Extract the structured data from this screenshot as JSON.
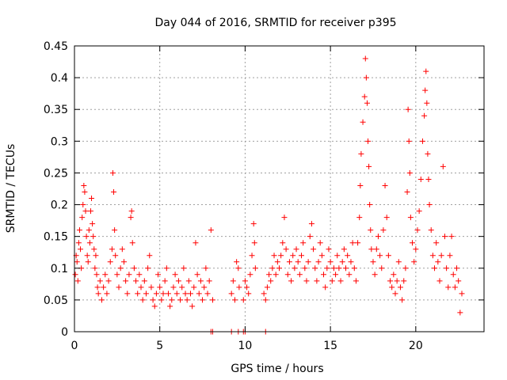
{
  "chart_data": {
    "type": "scatter",
    "title": "Day 044 of 2016, SRMTID for receiver p395",
    "xlabel": "GPS time / hours",
    "ylabel": "SRMTID / TECUs",
    "xlim": [
      0,
      24
    ],
    "ylim": [
      0,
      0.45
    ],
    "x_ticks": [
      0,
      5,
      10,
      15,
      20
    ],
    "y_ticks": [
      0,
      0.05,
      0.1,
      0.15,
      0.2,
      0.25,
      0.3,
      0.35,
      0.4,
      0.45
    ],
    "x_tick_labels": [
      "0",
      "5",
      "10",
      "15",
      "20"
    ],
    "y_tick_labels": [
      "0",
      "0.05",
      "0.1",
      "0.15",
      "0.2",
      "0.25",
      "0.3",
      "0.35",
      "0.4",
      "0.45"
    ],
    "grid": true,
    "marker": "+",
    "color": "#ff0000",
    "series": [
      {
        "name": "SRMTID",
        "points": [
          [
            0.05,
            0.09
          ],
          [
            0.1,
            0.12
          ],
          [
            0.15,
            0.11
          ],
          [
            0.2,
            0.08
          ],
          [
            0.25,
            0.14
          ],
          [
            0.3,
            0.16
          ],
          [
            0.35,
            0.13
          ],
          [
            0.4,
            0.1
          ],
          [
            0.45,
            0.18
          ],
          [
            0.5,
            0.2
          ],
          [
            0.55,
            0.23
          ],
          [
            0.6,
            0.22
          ],
          [
            0.65,
            0.19
          ],
          [
            0.7,
            0.15
          ],
          [
            0.75,
            0.12
          ],
          [
            0.8,
            0.11
          ],
          [
            0.85,
            0.16
          ],
          [
            0.9,
            0.14
          ],
          [
            0.95,
            0.19
          ],
          [
            1.0,
            0.21
          ],
          [
            1.05,
            0.17
          ],
          [
            1.1,
            0.15
          ],
          [
            1.15,
            0.13
          ],
          [
            1.2,
            0.1
          ],
          [
            1.25,
            0.12
          ],
          [
            1.3,
            0.09
          ],
          [
            1.35,
            0.07
          ],
          [
            1.4,
            0.06
          ],
          [
            1.5,
            0.08
          ],
          [
            1.6,
            0.05
          ],
          [
            1.7,
            0.07
          ],
          [
            1.8,
            0.09
          ],
          [
            1.9,
            0.06
          ],
          [
            2.0,
            0.08
          ],
          [
            2.1,
            0.11
          ],
          [
            2.2,
            0.13
          ],
          [
            2.25,
            0.25
          ],
          [
            2.3,
            0.22
          ],
          [
            2.35,
            0.16
          ],
          [
            2.4,
            0.12
          ],
          [
            2.5,
            0.09
          ],
          [
            2.6,
            0.07
          ],
          [
            2.7,
            0.1
          ],
          [
            2.8,
            0.13
          ],
          [
            2.9,
            0.11
          ],
          [
            3.0,
            0.08
          ],
          [
            3.1,
            0.06
          ],
          [
            3.2,
            0.09
          ],
          [
            3.3,
            0.18
          ],
          [
            3.35,
            0.19
          ],
          [
            3.4,
            0.14
          ],
          [
            3.5,
            0.1
          ],
          [
            3.6,
            0.08
          ],
          [
            3.7,
            0.06
          ],
          [
            3.8,
            0.09
          ],
          [
            3.9,
            0.07
          ],
          [
            4.0,
            0.05
          ],
          [
            4.1,
            0.08
          ],
          [
            4.2,
            0.06
          ],
          [
            4.3,
            0.1
          ],
          [
            4.4,
            0.12
          ],
          [
            4.5,
            0.07
          ],
          [
            4.6,
            0.05
          ],
          [
            4.7,
            0.04
          ],
          [
            4.8,
            0.06
          ],
          [
            4.9,
            0.09
          ],
          [
            5.0,
            0.07
          ],
          [
            5.1,
            0.05
          ],
          [
            5.2,
            0.06
          ],
          [
            5.3,
            0.08
          ],
          [
            5.4,
            0.1
          ],
          [
            5.5,
            0.06
          ],
          [
            5.6,
            0.04
          ],
          [
            5.7,
            0.05
          ],
          [
            5.8,
            0.07
          ],
          [
            5.9,
            0.09
          ],
          [
            6.0,
            0.06
          ],
          [
            6.1,
            0.08
          ],
          [
            6.2,
            0.05
          ],
          [
            6.3,
            0.07
          ],
          [
            6.4,
            0.1
          ],
          [
            6.5,
            0.06
          ],
          [
            6.6,
            0.05
          ],
          [
            6.7,
            0.08
          ],
          [
            6.8,
            0.06
          ],
          [
            6.9,
            0.04
          ],
          [
            7.0,
            0.07
          ],
          [
            7.1,
            0.14
          ],
          [
            7.2,
            0.09
          ],
          [
            7.3,
            0.06
          ],
          [
            7.4,
            0.08
          ],
          [
            7.5,
            0.05
          ],
          [
            7.6,
            0.07
          ],
          [
            7.7,
            0.1
          ],
          [
            7.8,
            0.06
          ],
          [
            7.9,
            0.08
          ],
          [
            8.0,
            0.16
          ],
          [
            8.1,
            0.05
          ],
          [
            8.0,
            0.0
          ],
          [
            8.1,
            0.0
          ],
          [
            9.2,
            0.06
          ],
          [
            9.3,
            0.08
          ],
          [
            9.4,
            0.05
          ],
          [
            9.5,
            0.11
          ],
          [
            9.6,
            0.1
          ],
          [
            9.65,
            0.07
          ],
          [
            9.2,
            0.0
          ],
          [
            9.6,
            0.0
          ],
          [
            9.9,
            0.05
          ],
          [
            10.0,
            0.08
          ],
          [
            10.1,
            0.07
          ],
          [
            10.2,
            0.06
          ],
          [
            10.3,
            0.09
          ],
          [
            10.4,
            0.12
          ],
          [
            10.5,
            0.17
          ],
          [
            10.55,
            0.14
          ],
          [
            10.6,
            0.1
          ],
          [
            9.9,
            0.0
          ],
          [
            10.0,
            0.0
          ],
          [
            11.1,
            0.06
          ],
          [
            11.2,
            0.05
          ],
          [
            11.3,
            0.07
          ],
          [
            11.4,
            0.09
          ],
          [
            11.5,
            0.08
          ],
          [
            11.6,
            0.1
          ],
          [
            11.7,
            0.12
          ],
          [
            11.8,
            0.09
          ],
          [
            11.9,
            0.11
          ],
          [
            12.0,
            0.1
          ],
          [
            12.1,
            0.12
          ],
          [
            12.2,
            0.14
          ],
          [
            12.3,
            0.18
          ],
          [
            12.4,
            0.13
          ],
          [
            12.5,
            0.09
          ],
          [
            12.6,
            0.11
          ],
          [
            12.7,
            0.08
          ],
          [
            12.8,
            0.12
          ],
          [
            12.9,
            0.1
          ],
          [
            13.0,
            0.13
          ],
          [
            13.1,
            0.11
          ],
          [
            13.2,
            0.09
          ],
          [
            13.3,
            0.12
          ],
          [
            13.4,
            0.14
          ],
          [
            13.5,
            0.1
          ],
          [
            13.6,
            0.08
          ],
          [
            13.7,
            0.11
          ],
          [
            13.8,
            0.15
          ],
          [
            13.9,
            0.17
          ],
          [
            14.0,
            0.13
          ],
          [
            14.1,
            0.1
          ],
          [
            14.2,
            0.08
          ],
          [
            14.3,
            0.11
          ],
          [
            14.4,
            0.14
          ],
          [
            14.5,
            0.12
          ],
          [
            14.6,
            0.09
          ],
          [
            14.7,
            0.07
          ],
          [
            14.8,
            0.1
          ],
          [
            14.9,
            0.13
          ],
          [
            15.0,
            0.11
          ],
          [
            15.1,
            0.08
          ],
          [
            15.2,
            0.1
          ],
          [
            15.3,
            0.09
          ],
          [
            15.4,
            0.12
          ],
          [
            15.5,
            0.1
          ],
          [
            15.6,
            0.08
          ],
          [
            15.7,
            0.11
          ],
          [
            15.8,
            0.13
          ],
          [
            15.9,
            0.1
          ],
          [
            16.0,
            0.12
          ],
          [
            16.1,
            0.09
          ],
          [
            16.2,
            0.11
          ],
          [
            16.3,
            0.14
          ],
          [
            16.4,
            0.1
          ],
          [
            16.5,
            0.08
          ],
          [
            11.2,
            0.0
          ],
          [
            16.6,
            0.14
          ],
          [
            16.7,
            0.18
          ],
          [
            16.75,
            0.23
          ],
          [
            16.8,
            0.28
          ],
          [
            16.9,
            0.33
          ],
          [
            17.0,
            0.37
          ],
          [
            17.05,
            0.43
          ],
          [
            17.1,
            0.4
          ],
          [
            17.15,
            0.36
          ],
          [
            17.2,
            0.3
          ],
          [
            17.25,
            0.26
          ],
          [
            17.3,
            0.2
          ],
          [
            17.35,
            0.16
          ],
          [
            17.4,
            0.13
          ],
          [
            17.5,
            0.11
          ],
          [
            17.6,
            0.09
          ],
          [
            17.7,
            0.13
          ],
          [
            17.8,
            0.15
          ],
          [
            17.9,
            0.12
          ],
          [
            18.0,
            0.1
          ],
          [
            18.1,
            0.16
          ],
          [
            18.2,
            0.23
          ],
          [
            18.3,
            0.18
          ],
          [
            18.4,
            0.12
          ],
          [
            18.5,
            0.08
          ],
          [
            18.6,
            0.07
          ],
          [
            18.7,
            0.09
          ],
          [
            18.8,
            0.06
          ],
          [
            18.9,
            0.08
          ],
          [
            19.0,
            0.11
          ],
          [
            19.1,
            0.07
          ],
          [
            19.2,
            0.05
          ],
          [
            19.3,
            0.08
          ],
          [
            19.4,
            0.1
          ],
          [
            19.5,
            0.22
          ],
          [
            19.55,
            0.35
          ],
          [
            19.6,
            0.3
          ],
          [
            19.65,
            0.25
          ],
          [
            19.7,
            0.18
          ],
          [
            19.8,
            0.14
          ],
          [
            19.9,
            0.11
          ],
          [
            20.0,
            0.13
          ],
          [
            20.1,
            0.16
          ],
          [
            20.2,
            0.19
          ],
          [
            20.3,
            0.24
          ],
          [
            20.4,
            0.3
          ],
          [
            20.5,
            0.34
          ],
          [
            20.55,
            0.38
          ],
          [
            20.6,
            0.41
          ],
          [
            20.65,
            0.36
          ],
          [
            20.7,
            0.28
          ],
          [
            20.75,
            0.24
          ],
          [
            20.8,
            0.2
          ],
          [
            20.9,
            0.16
          ],
          [
            21.0,
            0.12
          ],
          [
            21.1,
            0.1
          ],
          [
            21.2,
            0.14
          ],
          [
            21.3,
            0.11
          ],
          [
            21.4,
            0.08
          ],
          [
            21.5,
            0.12
          ],
          [
            21.6,
            0.26
          ],
          [
            21.7,
            0.15
          ],
          [
            21.8,
            0.1
          ],
          [
            21.9,
            0.07
          ],
          [
            22.0,
            0.12
          ],
          [
            22.1,
            0.15
          ],
          [
            22.2,
            0.09
          ],
          [
            22.3,
            0.07
          ],
          [
            22.4,
            0.1
          ],
          [
            22.5,
            0.08
          ],
          [
            22.6,
            0.03
          ],
          [
            22.7,
            0.06
          ]
        ]
      }
    ]
  }
}
